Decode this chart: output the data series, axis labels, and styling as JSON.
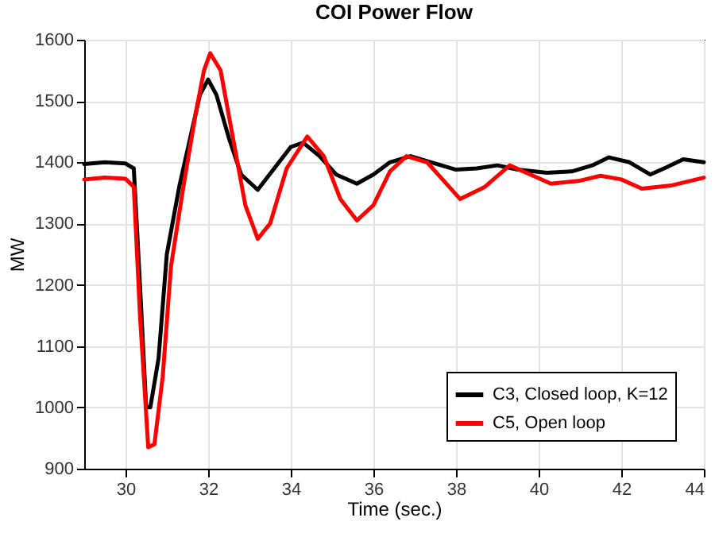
{
  "chart_data": {
    "type": "line",
    "title": "COI Power Flow",
    "xlabel": "Time (sec.)",
    "ylabel": "MW",
    "xlim": [
      29,
      44
    ],
    "xticks": [
      30,
      32,
      34,
      36,
      38,
      40,
      42,
      44
    ],
    "ylim": [
      900,
      1600
    ],
    "yticks": [
      900,
      1000,
      1100,
      1200,
      1300,
      1400,
      1500,
      1600
    ],
    "grid": true,
    "legend": "bottom right",
    "line_style": "solid",
    "series": [
      {
        "name": "C3, Closed loop, K=12",
        "color": "#000000",
        "x": [
          29,
          29.5,
          30,
          30.2,
          30.35,
          30.5,
          30.6,
          30.8,
          31,
          31.3,
          31.6,
          31.8,
          32,
          32.2,
          32.5,
          32.8,
          33.2,
          33.6,
          34,
          34.3,
          34.7,
          35.1,
          35.6,
          36,
          36.4,
          36.9,
          37.4,
          38,
          38.5,
          39,
          39.5,
          40.2,
          40.8,
          41.3,
          41.7,
          42.2,
          42.7,
          43.1,
          43.5,
          44
        ],
        "values": [
          1397,
          1400,
          1398,
          1390,
          1200,
          1000,
          1000,
          1080,
          1250,
          1360,
          1450,
          1510,
          1535,
          1510,
          1440,
          1380,
          1355,
          1390,
          1425,
          1432,
          1410,
          1380,
          1365,
          1380,
          1400,
          1410,
          1400,
          1388,
          1390,
          1395,
          1388,
          1383,
          1385,
          1395,
          1408,
          1400,
          1380,
          1392,
          1405,
          1400
        ]
      },
      {
        "name": "C5, Open loop",
        "color": "#ff0000",
        "x": [
          29,
          29.5,
          30,
          30.2,
          30.35,
          30.55,
          30.7,
          30.9,
          31.1,
          31.4,
          31.7,
          31.9,
          32.05,
          32.3,
          32.6,
          32.9,
          33.2,
          33.5,
          33.9,
          34.4,
          34.8,
          35.2,
          35.6,
          36,
          36.4,
          36.8,
          37.3,
          37.7,
          38.1,
          38.7,
          39.3,
          39.8,
          40.3,
          41,
          41.5,
          42,
          42.5,
          43.2,
          44
        ],
        "values": [
          1372,
          1375,
          1373,
          1360,
          1150,
          935,
          940,
          1050,
          1230,
          1360,
          1480,
          1550,
          1578,
          1550,
          1440,
          1330,
          1275,
          1300,
          1390,
          1442,
          1410,
          1340,
          1305,
          1330,
          1385,
          1410,
          1400,
          1370,
          1340,
          1360,
          1395,
          1380,
          1365,
          1370,
          1378,
          1372,
          1357,
          1362,
          1375
        ]
      }
    ]
  }
}
